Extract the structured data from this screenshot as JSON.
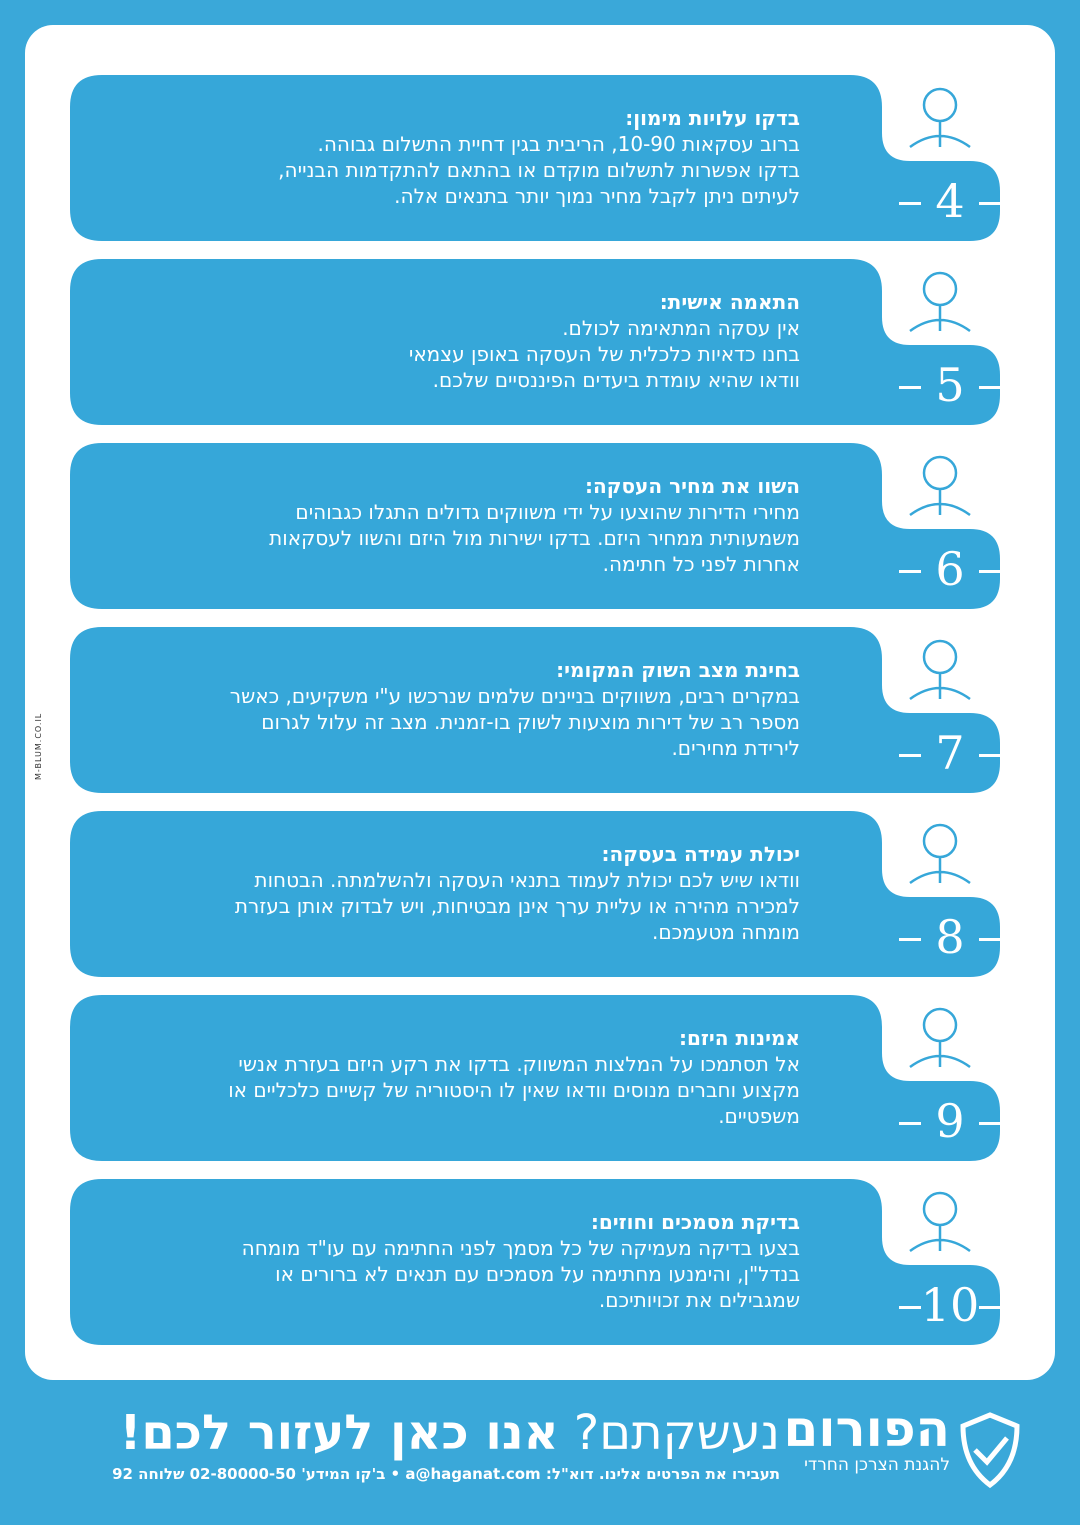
{
  "items": [
    {
      "number": "4",
      "title": "בדקו עלויות מימון:",
      "lines": [
        "ברוב עסקאות 10-90, הריבית בגין דחיית התשלום גבוהה.",
        "בדקו אפשרות לתשלום מוקדם או בהתאם להתקדמות הבנייה,",
        "לעיתים ניתן לקבל מחיר נמוך יותר בתנאים אלה."
      ]
    },
    {
      "number": "5",
      "title": "התאמה אישית:",
      "lines": [
        "אין עסקה המתאימה לכולם.",
        "בחנו כדאיות כלכלית של העסקה באופן עצמאי",
        "וודאו שהיא עומדת ביעדים הפיננסיים שלכם."
      ]
    },
    {
      "number": "6",
      "title": "השוו את מחיר העסקה:",
      "lines": [
        "מחירי הדירות שהוצעו על ידי משווקים גדולים התגלו כגבוהים",
        "משמעותית ממחיר היזם. בדקו ישירות מול היזם והשוו לעסקאות",
        "אחרות לפני כל חתימה."
      ]
    },
    {
      "number": "7",
      "title": "בחינת מצב השוק המקומי:",
      "lines": [
        "במקרים רבים, משווקים בניינים שלמים שנרכשו ע\"י משקיעים, כאשר",
        "מספר רב של דירות מוצעות לשוק בו-זמנית. מצב זה עלול לגרום",
        "לירידת מחירים."
      ]
    },
    {
      "number": "8",
      "title": "יכולת עמידה בעסקה:",
      "lines": [
        "וודאו שיש לכם יכולת לעמוד בתנאי העסקה ולהשלמתה. הבטחות",
        "למכירה מהירה או עליית ערך אינן מבטיחות, ויש לבדוק אותן בעזרת",
        "מומחה מטעמכם."
      ]
    },
    {
      "number": "9",
      "title": "אמינות היזם:",
      "lines": [
        "אל תסתמכו על המלצות המשווק. בדקו את רקע היזם בעזרת אנשי",
        "מקצוע וחברים מנוסים וודאו שאין לו היסטוריה של קשיים כלכליים או",
        "משפטיים."
      ]
    },
    {
      "number": "10",
      "title": "בדיקת מסמכים וחוזים:",
      "lines": [
        "בצעו בדיקה מעמיקה של כל מסמך לפני החתימה עם עו\"ד מומחה",
        "בנדל\"ן, והימנעו מחתימה על מסמכים עם תנאים לא ברורים או",
        "שמגבילים את זכויותיכם."
      ]
    }
  ],
  "side_credit": "M-BLUM.CO.IL",
  "footer": {
    "headline_light": "נעשקתם?",
    "headline_bold": "אנו כאן לעזור לכם!",
    "contact": "תעבירו את הפרטים אלינו. דוא\"ל: a@haganat.com • ב'קו המידע' 02-80000-50 שלוחה 92",
    "logo_name": "הפורום",
    "logo_tagline": "להגנת הצרכן החרדי"
  }
}
